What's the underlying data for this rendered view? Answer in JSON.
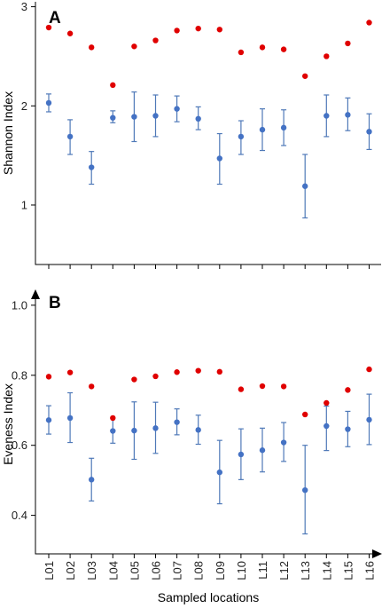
{
  "chart_data": [
    {
      "type": "scatter",
      "panel_label": "A",
      "ylabel": "Shannon Index",
      "ylim": [
        0.4,
        3.05
      ],
      "yticks": [
        1,
        2,
        3
      ],
      "categories": [
        "L01",
        "L02",
        "L03",
        "L04",
        "L05",
        "L06",
        "L07",
        "L08",
        "L09",
        "L10",
        "L11",
        "L12",
        "L13",
        "L14",
        "L15",
        "L16"
      ],
      "series": [
        {
          "color": "#4472c4",
          "values": [
            2.03,
            1.69,
            1.38,
            1.88,
            1.89,
            1.9,
            1.97,
            1.87,
            1.47,
            1.69,
            1.76,
            1.78,
            1.19,
            1.9,
            1.91,
            1.74
          ],
          "err_low": [
            1.94,
            1.51,
            1.21,
            1.83,
            1.64,
            1.69,
            1.84,
            1.76,
            1.21,
            1.51,
            1.55,
            1.6,
            0.87,
            1.69,
            1.75,
            1.56
          ],
          "err_high": [
            2.12,
            1.86,
            1.54,
            1.95,
            2.14,
            2.11,
            2.1,
            1.99,
            1.72,
            1.85,
            1.97,
            1.96,
            1.51,
            2.11,
            2.08,
            1.92
          ]
        },
        {
          "color": "#e00000",
          "values": [
            2.79,
            2.73,
            2.59,
            2.21,
            2.6,
            2.66,
            2.76,
            2.78,
            2.77,
            2.54,
            2.59,
            2.57,
            2.3,
            2.5,
            2.63,
            2.84
          ]
        }
      ]
    },
    {
      "type": "scatter",
      "panel_label": "B",
      "ylabel": "Eveness Index",
      "xlabel": "Sampled locations",
      "ylim": [
        0.29,
        1.02
      ],
      "yticks": [
        0.4,
        0.6,
        0.8,
        1.0
      ],
      "ytick_labels": [
        "0.4",
        "0.6",
        "0.8",
        "1.0"
      ],
      "categories": [
        "L01",
        "L02",
        "L03",
        "L04",
        "L05",
        "L06",
        "L07",
        "L08",
        "L09",
        "L10",
        "L11",
        "L12",
        "L13",
        "L14",
        "L15",
        "L16"
      ],
      "series": [
        {
          "color": "#4472c4",
          "values": [
            0.672,
            0.678,
            0.502,
            0.641,
            0.642,
            0.649,
            0.666,
            0.644,
            0.523,
            0.574,
            0.586,
            0.608,
            0.472,
            0.655,
            0.646,
            0.673
          ],
          "err_low": [
            0.632,
            0.608,
            0.441,
            0.606,
            0.56,
            0.577,
            0.63,
            0.603,
            0.433,
            0.502,
            0.524,
            0.554,
            0.347,
            0.585,
            0.596,
            0.602
          ],
          "err_high": [
            0.713,
            0.75,
            0.563,
            0.678,
            0.724,
            0.723,
            0.704,
            0.686,
            0.614,
            0.647,
            0.649,
            0.665,
            0.6,
            0.712,
            0.697,
            0.746
          ]
        },
        {
          "color": "#e00000",
          "values": [
            0.796,
            0.808,
            0.768,
            0.678,
            0.788,
            0.797,
            0.809,
            0.813,
            0.81,
            0.76,
            0.769,
            0.768,
            0.688,
            0.721,
            0.758,
            0.817
          ]
        }
      ]
    }
  ]
}
